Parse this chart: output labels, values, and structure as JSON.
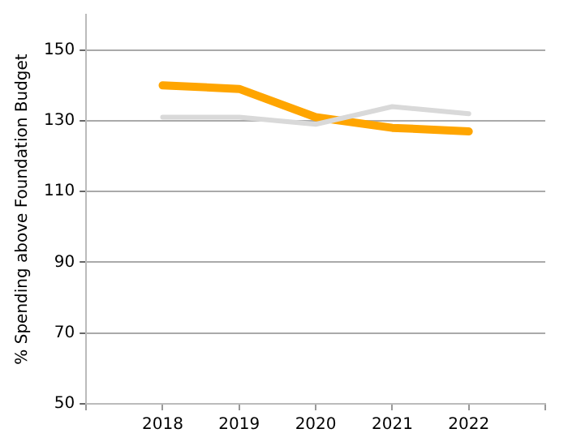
{
  "chart_data": {
    "type": "line",
    "ylabel": "% Spending above Foundation Budget",
    "x": [
      2018,
      2019,
      2020,
      2021,
      2022
    ],
    "xlim": [
      2017,
      2023
    ],
    "xticks": [
      {
        "value": 2017,
        "label": null
      },
      2018,
      2019,
      2020,
      2021,
      2022,
      {
        "value": 2023,
        "label": null
      }
    ],
    "ylim": [
      50,
      160
    ],
    "yticks": [
      50,
      70,
      90,
      110,
      130,
      150
    ],
    "grid": "y",
    "marker": "none",
    "line_style": "solid",
    "series": [
      {
        "color": "#d9d9d9",
        "values": [
          131,
          131,
          129,
          134,
          132
        ]
      },
      {
        "color": "#ffa500",
        "values": [
          140,
          139,
          131,
          128,
          127
        ]
      }
    ]
  }
}
